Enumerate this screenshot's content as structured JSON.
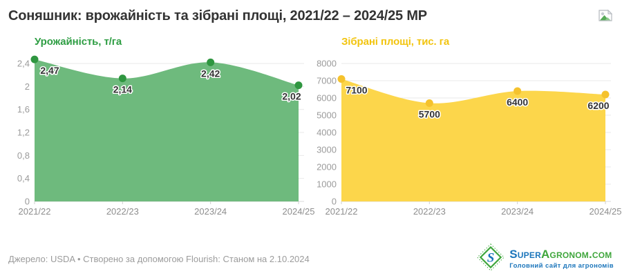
{
  "page": {
    "title": "Соняшник: врожайність та зібрані площі, 2021/22 – 2024/25 МР"
  },
  "chart_data": [
    {
      "type": "area",
      "title": "Урожайність, т/га",
      "categories": [
        "2021/22",
        "2022/23",
        "2023/24",
        "2024/25"
      ],
      "values": [
        2.47,
        2.14,
        2.42,
        2.02
      ],
      "value_labels": [
        "2,47",
        "2,14",
        "2,42",
        "2,02"
      ],
      "xlabel": "",
      "ylabel": "т/га",
      "ylim": [
        0,
        2.4
      ],
      "yticks": [
        0,
        0.4,
        0.8,
        1.2,
        1.6,
        2,
        2.4
      ],
      "ytick_labels": [
        "0",
        "0,4",
        "0,8",
        "1,2",
        "1,6",
        "2",
        "2,4"
      ],
      "grid": true,
      "legend_position": "none",
      "area_color": "#6eba7d",
      "dot_color": "#2f9640",
      "title_color": "#2f9e44"
    },
    {
      "type": "area",
      "title": "Зібрані площі, тис. га",
      "categories": [
        "2021/22",
        "2022/23",
        "2023/24",
        "2024/25"
      ],
      "values": [
        7100,
        5700,
        6400,
        6200
      ],
      "value_labels": [
        "7100",
        "5700",
        "6400",
        "6200"
      ],
      "xlabel": "",
      "ylabel": "тис. га",
      "ylim": [
        0,
        8000
      ],
      "yticks": [
        0,
        1000,
        2000,
        3000,
        4000,
        5000,
        6000,
        7000,
        8000
      ],
      "ytick_labels": [
        "0",
        "1000",
        "2000",
        "3000",
        "4000",
        "5000",
        "6000",
        "7000",
        "8000"
      ],
      "grid": true,
      "legend_position": "none",
      "area_color": "#fcd64b",
      "dot_color": "#f5c22d",
      "title_color": "#f2c40f"
    }
  ],
  "style": {
    "grid_color": "#e9e9e9",
    "baseline_color": "#d9d9d9",
    "tick_color": "#cfcfcf",
    "axis_text_color": "#9b9b9b",
    "xaxis_text_color": "#8d8d8d",
    "value_label_color": "#333333"
  },
  "footer": {
    "source": "Джерело: USDA • Створено за допомогою Flourish: Станом на 2.10.2024",
    "logo": {
      "mark_letter": "S",
      "name_part1": "Super",
      "name_part2": "Agronom.com",
      "tagline": "Головний сайт для агрономів",
      "blue": "#1b75bb",
      "green": "#3fa63c"
    }
  }
}
